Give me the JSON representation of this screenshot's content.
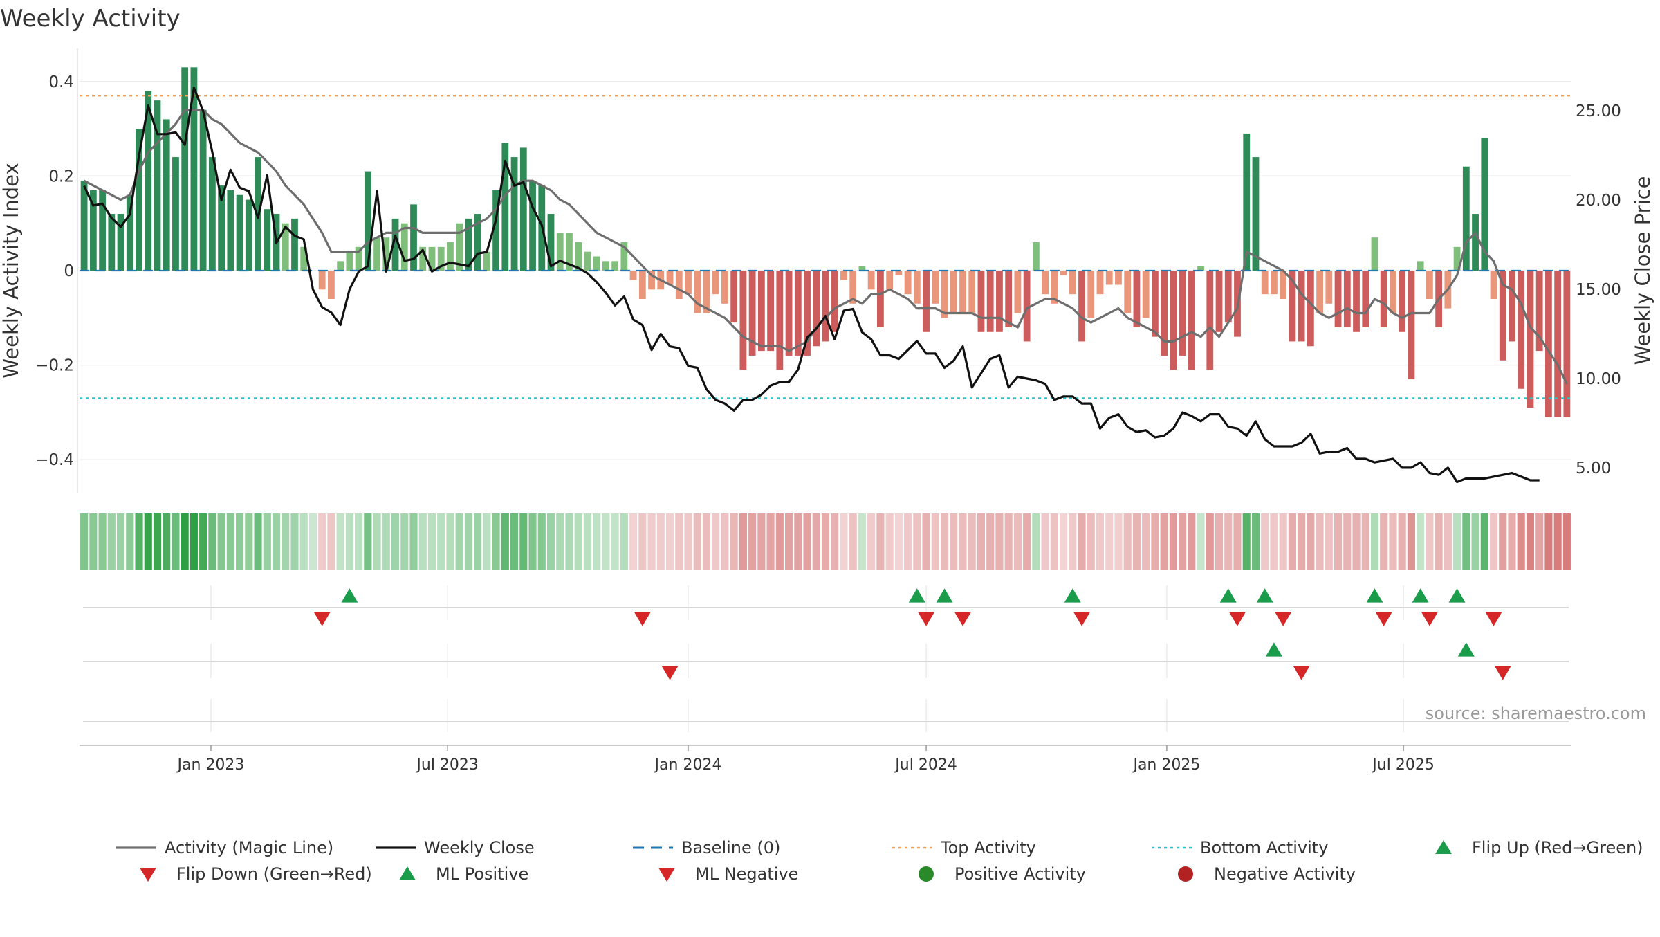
{
  "chart_data": {
    "type": "bar",
    "title": "Weekly Activity",
    "ylabel": "Weekly Activity Index",
    "y2label": "Weekly Close Price",
    "ylim": [
      -0.47,
      0.47
    ],
    "y2lim": [
      3.6,
      28.5
    ],
    "yticks": [
      {
        "v": 0.4,
        "label": "0.4"
      },
      {
        "v": 0.2,
        "label": "0.2"
      },
      {
        "v": 0,
        "label": "0"
      },
      {
        "v": -0.2,
        "label": "−0.2"
      },
      {
        "v": -0.4,
        "label": "−0.4"
      }
    ],
    "y2ticks": [
      {
        "v": 25,
        "label": "25.00"
      },
      {
        "v": 20,
        "label": "20.00"
      },
      {
        "v": 15,
        "label": "15.00"
      },
      {
        "v": 10,
        "label": "10.00"
      },
      {
        "v": 5,
        "label": "5.00"
      }
    ],
    "xticks": [
      {
        "date": "2023-01-01",
        "label": "Jan 2023"
      },
      {
        "date": "2023-07-01",
        "label": "Jul 2023"
      },
      {
        "date": "2024-01-01",
        "label": "Jan 2024"
      },
      {
        "date": "2024-07-01",
        "label": "Jul 2024"
      },
      {
        "date": "2025-01-01",
        "label": "Jan 2025"
      },
      {
        "date": "2025-07-01",
        "label": "Jul 2025"
      }
    ],
    "start_week": "2022-09-26",
    "end_week": "2025-09-29",
    "reference_lines": {
      "baseline": 0,
      "top_activity": 0.37,
      "bottom_activity": -0.27
    },
    "activity": [
      0.19,
      0.17,
      0.17,
      0.12,
      0.12,
      0.16,
      0.3,
      0.38,
      0.36,
      0.32,
      0.24,
      0.43,
      0.43,
      0.34,
      0.24,
      0.18,
      0.17,
      0.16,
      0.15,
      0.24,
      0.13,
      0.12,
      0.1,
      0.11,
      0.05,
      0.0,
      -0.04,
      -0.06,
      0.02,
      0.04,
      0.05,
      0.21,
      0.07,
      0.07,
      0.11,
      0.1,
      0.14,
      0.05,
      0.05,
      0.05,
      0.06,
      0.1,
      0.11,
      0.12,
      0.04,
      0.17,
      0.27,
      0.24,
      0.26,
      0.19,
      0.18,
      0.12,
      0.08,
      0.08,
      0.06,
      0.04,
      0.03,
      0.02,
      0.02,
      0.06,
      -0.02,
      -0.06,
      -0.04,
      -0.04,
      -0.03,
      -0.06,
      -0.05,
      -0.09,
      -0.09,
      -0.05,
      -0.07,
      -0.11,
      -0.21,
      -0.18,
      -0.17,
      -0.17,
      -0.21,
      -0.18,
      -0.18,
      -0.18,
      -0.16,
      -0.15,
      -0.13,
      -0.02,
      -0.07,
      0.01,
      -0.04,
      -0.12,
      -0.04,
      -0.01,
      -0.05,
      -0.07,
      -0.13,
      -0.07,
      -0.1,
      -0.09,
      -0.09,
      -0.09,
      -0.13,
      -0.13,
      -0.13,
      -0.12,
      -0.09,
      -0.15,
      0.06,
      -0.05,
      -0.07,
      -0.01,
      -0.05,
      -0.15,
      -0.1,
      -0.05,
      -0.03,
      -0.03,
      -0.09,
      -0.12,
      -0.1,
      -0.14,
      -0.18,
      -0.21,
      -0.18,
      -0.21,
      0.01,
      -0.21,
      -0.13,
      -0.11,
      -0.14,
      0.29,
      0.24,
      -0.05,
      -0.05,
      -0.06,
      -0.15,
      -0.15,
      -0.16,
      -0.09,
      -0.07,
      -0.12,
      -0.12,
      -0.13,
      -0.12,
      0.07,
      -0.12,
      -0.09,
      -0.13,
      -0.23,
      0.02,
      -0.06,
      -0.12,
      -0.08,
      0.05,
      0.22,
      0.12,
      0.28,
      -0.06,
      -0.19,
      -0.15,
      -0.25,
      -0.29,
      -0.17,
      -0.31,
      -0.31,
      -0.31
    ],
    "magic_line": [
      0.19,
      0.18,
      0.17,
      0.16,
      0.15,
      0.16,
      0.21,
      0.25,
      0.27,
      0.29,
      0.31,
      0.34,
      0.34,
      0.34,
      0.32,
      0.31,
      0.29,
      0.27,
      0.26,
      0.25,
      0.23,
      0.21,
      0.18,
      0.16,
      0.14,
      0.11,
      0.08,
      0.04,
      0.04,
      0.04,
      0.04,
      0.06,
      0.07,
      0.08,
      0.08,
      0.09,
      0.09,
      0.08,
      0.08,
      0.08,
      0.08,
      0.08,
      0.09,
      0.1,
      0.11,
      0.13,
      0.16,
      0.18,
      0.19,
      0.19,
      0.18,
      0.17,
      0.15,
      0.14,
      0.12,
      0.1,
      0.08,
      0.07,
      0.06,
      0.05,
      0.03,
      0.01,
      -0.01,
      -0.02,
      -0.03,
      -0.04,
      -0.05,
      -0.07,
      -0.08,
      -0.09,
      -0.1,
      -0.12,
      -0.14,
      -0.15,
      -0.16,
      -0.16,
      -0.16,
      -0.17,
      -0.16,
      -0.15,
      -0.12,
      -0.1,
      -0.08,
      -0.07,
      -0.06,
      -0.07,
      -0.05,
      -0.05,
      -0.04,
      -0.05,
      -0.06,
      -0.08,
      -0.08,
      -0.08,
      -0.09,
      -0.09,
      -0.09,
      -0.09,
      -0.1,
      -0.1,
      -0.1,
      -0.11,
      -0.12,
      -0.08,
      -0.07,
      -0.06,
      -0.06,
      -0.07,
      -0.08,
      -0.1,
      -0.11,
      -0.1,
      -0.09,
      -0.08,
      -0.1,
      -0.11,
      -0.12,
      -0.13,
      -0.15,
      -0.15,
      -0.14,
      -0.13,
      -0.14,
      -0.12,
      -0.14,
      -0.11,
      -0.08,
      0.04,
      0.03,
      0.02,
      0.01,
      0.0,
      -0.02,
      -0.05,
      -0.07,
      -0.09,
      -0.1,
      -0.09,
      -0.08,
      -0.09,
      -0.09,
      -0.06,
      -0.07,
      -0.09,
      -0.1,
      -0.09,
      -0.09,
      -0.09,
      -0.06,
      -0.04,
      -0.01,
      0.06,
      0.08,
      0.04,
      0.02,
      -0.03,
      -0.04,
      -0.07,
      -0.12,
      -0.14,
      -0.17,
      -0.2,
      -0.24
    ],
    "weekly_close": [
      20.8,
      19.7,
      19.8,
      19.0,
      18.5,
      19.2,
      22.5,
      25.3,
      23.7,
      23.7,
      23.8,
      23.1,
      26.3,
      25.0,
      22.7,
      20.0,
      21.7,
      20.7,
      20.5,
      19.0,
      21.4,
      17.6,
      18.5,
      18.0,
      17.8,
      15.0,
      14.0,
      13.7,
      13.0,
      15.0,
      16.0,
      16.3,
      20.5,
      16.0,
      18.0,
      16.6,
      16.7,
      17.2,
      16.0,
      16.3,
      16.5,
      16.4,
      16.3,
      17.0,
      17.1,
      18.9,
      22.2,
      20.8,
      21.0,
      19.6,
      18.6,
      16.3,
      16.6,
      16.4,
      16.2,
      15.9,
      15.4,
      14.8,
      14.1,
      14.6,
      13.3,
      13.0,
      11.6,
      12.5,
      11.8,
      11.7,
      10.7,
      10.6,
      9.4,
      8.8,
      8.6,
      8.2,
      8.8,
      8.8,
      9.1,
      9.6,
      9.8,
      9.8,
      10.5,
      12.3,
      12.8,
      13.5,
      12.2,
      13.8,
      13.9,
      12.6,
      12.2,
      11.3,
      11.3,
      11.1,
      11.6,
      12.1,
      11.4,
      11.4,
      10.6,
      11.0,
      11.8,
      9.5,
      10.3,
      11.1,
      11.3,
      9.5,
      10.1,
      10.0,
      9.9,
      9.7,
      8.8,
      9.0,
      9.0,
      8.6,
      8.6,
      7.2,
      7.8,
      8.0,
      7.3,
      7.0,
      7.1,
      6.7,
      6.8,
      7.2,
      8.1,
      7.9,
      7.6,
      8.0,
      8.0,
      7.3,
      7.2,
      6.8,
      7.6,
      6.6,
      6.2,
      6.2,
      6.2,
      6.4,
      6.9,
      5.8,
      5.9,
      5.9,
      6.1,
      5.5,
      5.5,
      5.3,
      5.4,
      5.5,
      5.0,
      5.0,
      5.3,
      4.7,
      4.6,
      5.0,
      4.2,
      4.4,
      4.4,
      4.4,
      4.5,
      4.6,
      4.7,
      4.5,
      4.3,
      4.3
    ],
    "ml_positive": [
      29,
      91,
      94,
      108,
      125,
      129,
      141,
      146,
      150
    ],
    "ml_negative": [
      26,
      61,
      92,
      96,
      109,
      126,
      131,
      142,
      147,
      154
    ],
    "flip_up": [
      130,
      151
    ],
    "flip_down": [
      64,
      133,
      155
    ],
    "legend": [
      {
        "label": "Activity (Magic Line)",
        "marker": "line",
        "color": "#6e6e6e"
      },
      {
        "label": "Weekly Close",
        "marker": "line",
        "color": "#111111"
      },
      {
        "label": "Baseline (0)",
        "marker": "dash",
        "color": "#1f77b4"
      },
      {
        "label": "Top Activity",
        "marker": "dot",
        "color": "#f0a35e"
      },
      {
        "label": "Bottom Activity",
        "marker": "dot",
        "color": "#2ec4c4"
      },
      {
        "label": "Flip Up (Red→Green)",
        "marker": "tri-up",
        "color": "#1a9c4b"
      },
      {
        "label": "Flip Down (Green→Red)",
        "marker": "tri-down",
        "color": "#d62728"
      },
      {
        "label": "ML Positive",
        "marker": "tri-up",
        "color": "#1a9c4b"
      },
      {
        "label": "ML Negative",
        "marker": "tri-down",
        "color": "#d62728"
      },
      {
        "label": "Positive Activity",
        "marker": "circle",
        "color": "#2a8a2a"
      },
      {
        "label": "Negative Activity",
        "marker": "circle",
        "color": "#b22222"
      }
    ],
    "source": "source: sharemaestro.com",
    "colors": {
      "pos_dark": "#2e8b57",
      "pos_light": "#7fbf7b",
      "neg_dark": "#cd5c5c",
      "neg_light": "#e9967a",
      "grid": "#e6e6e6"
    }
  }
}
